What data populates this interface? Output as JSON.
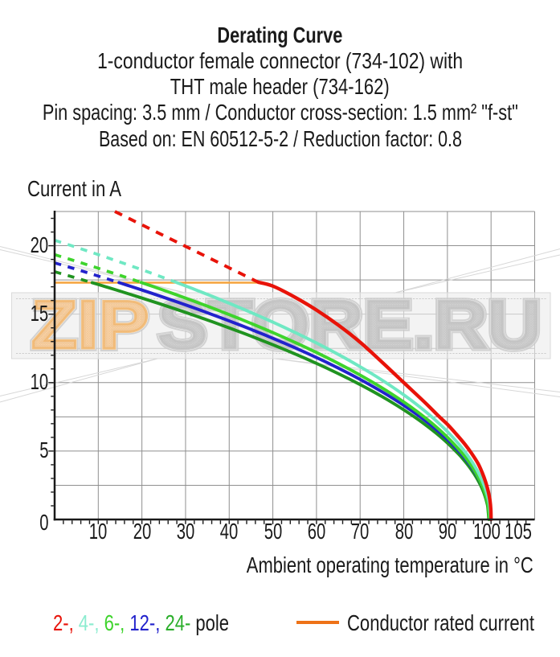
{
  "titles": {
    "line1": "Derating Curve",
    "line2": "1-conductor female connector (734-102) with",
    "line3": "THT male header (734-162)",
    "line4": "Pin spacing: 3.5 mm / Conductor cross-section: 1.5 mm² \"f-st\"",
    "line5": "Based on: EN 60512-5-2 / Reduction factor: 0.8"
  },
  "y_axis": {
    "label": "Current in A",
    "ticks": [
      0,
      5,
      10,
      15,
      20
    ],
    "minor_step": 1,
    "range": [
      0,
      22.5
    ]
  },
  "x_axis": {
    "label": "Ambient operating temperature in °C",
    "ticks": [
      10,
      20,
      30,
      40,
      50,
      60,
      70,
      80,
      90,
      100,
      105
    ],
    "minor_step": 2,
    "range": [
      0,
      110
    ]
  },
  "legend": {
    "pole_items": [
      {
        "label": "2-,",
        "color": "#E81309"
      },
      {
        "label": "4-,",
        "color": "#8CECD0"
      },
      {
        "label": "6-,",
        "color": "#3ED42C"
      },
      {
        "label": "12-,",
        "color": "#2222CC"
      },
      {
        "label": "24-",
        "color": "#2AAE2A"
      }
    ],
    "pole_suffix": "pole",
    "rated_label": "Conductor rated current",
    "rated_color": "#EE7217"
  },
  "watermark": {
    "part1": "ZIP",
    "part2": "STORE.RU",
    "part1_color": "#F6C791",
    "part2_color": "#C6C6C6"
  },
  "chart_data": {
    "type": "line",
    "title": "Derating Curve",
    "xlabel": "Ambient operating temperature in °C",
    "ylabel": "Current in A",
    "xlim": [
      0,
      110
    ],
    "ylim": [
      0,
      22.5
    ],
    "x_gridline_step": 10,
    "y_gridline_step": 2.5,
    "grid": true,
    "rated_line": {
      "y": 17.3,
      "x_start": 0,
      "x_end": 46.7,
      "color": "#F5A43C"
    },
    "series": [
      {
        "name": "2-pole",
        "color": "#E81309",
        "dashed_points": [
          [
            13.8,
            22.5
          ],
          [
            46.7,
            17.33
          ]
        ],
        "solid_points": [
          [
            46.7,
            17.33
          ],
          [
            50,
            17.05
          ],
          [
            55,
            16.25
          ],
          [
            60,
            15.3
          ],
          [
            65,
            14.2
          ],
          [
            70,
            12.95
          ],
          [
            75,
            11.5
          ],
          [
            80,
            10.0
          ],
          [
            85,
            8.5
          ],
          [
            88,
            7.55
          ],
          [
            90,
            6.95
          ],
          [
            92,
            6.25
          ],
          [
            94,
            5.5
          ],
          [
            95.5,
            4.85
          ],
          [
            97,
            4.1
          ],
          [
            98,
            3.4
          ],
          [
            98.8,
            2.7
          ],
          [
            99.4,
            2.0
          ],
          [
            99.75,
            1.4
          ],
          [
            99.95,
            0.7
          ],
          [
            100.0,
            0
          ]
        ]
      },
      {
        "name": "4-pole",
        "color": "#6FE8C3",
        "dashed_points": [
          [
            0.0,
            20.4
          ],
          [
            4.0,
            19.987
          ],
          [
            8.0,
            19.566
          ],
          [
            12.0,
            19.136
          ],
          [
            16.0,
            18.695
          ],
          [
            20.0,
            18.244
          ],
          [
            24.0,
            17.781
          ],
          [
            28.0,
            17.307
          ],
          [
            28.05,
            17.3
          ]
        ],
        "solid_points": [
          [
            28.05,
            17.3
          ],
          [
            30.0,
            17.064
          ],
          [
            32.5,
            16.756
          ],
          [
            35.0,
            16.443
          ],
          [
            37.5,
            16.123
          ],
          [
            40.0,
            15.796
          ],
          [
            42.5,
            15.463
          ],
          [
            45.0,
            15.123
          ],
          [
            47.5,
            14.775
          ],
          [
            50.0,
            14.418
          ],
          [
            52.5,
            14.052
          ],
          [
            55.0,
            13.676
          ],
          [
            57.5,
            13.29
          ],
          [
            60.0,
            12.892
          ],
          [
            62.5,
            12.482
          ],
          [
            65.0,
            12.058
          ],
          [
            67.5,
            11.618
          ],
          [
            70.0,
            11.16
          ],
          [
            72.5,
            10.684
          ],
          [
            75.0,
            10.185
          ],
          [
            77.5,
            9.66
          ],
          [
            80.0,
            9.105
          ],
          [
            82.5,
            8.514
          ],
          [
            85.0,
            7.878
          ],
          [
            87.5,
            7.187
          ],
          [
            90.0,
            6.422
          ],
          [
            92.5,
            5.552
          ],
          [
            93.9,
            4.999
          ],
          [
            94.9,
            4.564
          ],
          [
            95.9,
            4.082
          ],
          [
            96.9,
            3.535
          ],
          [
            97.9,
            2.886
          ],
          [
            98.4,
            2.5
          ],
          [
            98.65,
            2.282
          ],
          [
            98.9,
            2.041
          ],
          [
            99.15,
            1.768
          ],
          [
            99.4,
            1.443
          ],
          [
            99.65,
            1.021
          ],
          [
            99.9,
            0.0
          ]
        ]
      },
      {
        "name": "6-pole",
        "color": "#3ED42C",
        "dashed_points": [
          [
            0.0,
            19.35
          ],
          [
            4.0,
            18.957
          ],
          [
            8.0,
            18.557
          ],
          [
            12.0,
            18.147
          ],
          [
            16.0,
            17.728
          ],
          [
            19.99,
            17.3
          ]
        ],
        "solid_points": [
          [
            19.99,
            17.3
          ],
          [
            20.0,
            17.298
          ],
          [
            22.5,
            17.025
          ],
          [
            25.0,
            16.746
          ],
          [
            27.5,
            16.463
          ],
          [
            30.0,
            16.175
          ],
          [
            32.5,
            15.882
          ],
          [
            35.0,
            15.584
          ],
          [
            37.5,
            15.279
          ],
          [
            40.0,
            14.968
          ],
          [
            42.5,
            14.651
          ],
          [
            45.0,
            14.327
          ],
          [
            47.5,
            13.995
          ],
          [
            50.0,
            13.655
          ],
          [
            52.5,
            13.306
          ],
          [
            55.0,
            12.948
          ],
          [
            57.5,
            12.58
          ],
          [
            60.0,
            12.201
          ],
          [
            62.5,
            11.81
          ],
          [
            65.0,
            11.405
          ],
          [
            67.5,
            10.985
          ],
          [
            70.0,
            10.549
          ],
          [
            72.5,
            10.093
          ],
          [
            75.0,
            9.617
          ],
          [
            77.5,
            9.115
          ],
          [
            80.0,
            8.584
          ],
          [
            82.5,
            8.018
          ],
          [
            85.0,
            7.408
          ],
          [
            87.5,
            6.744
          ],
          [
            90.0,
            6.007
          ],
          [
            92.5,
            5.166
          ],
          [
            93.6,
            4.749
          ],
          [
            94.6,
            4.335
          ],
          [
            95.6,
            3.878
          ],
          [
            96.6,
            3.358
          ],
          [
            97.6,
            2.742
          ],
          [
            98.1,
            2.375
          ],
          [
            98.35,
            2.168
          ],
          [
            98.6,
            1.939
          ],
          [
            98.85,
            1.679
          ],
          [
            99.1,
            1.371
          ],
          [
            99.35,
            0.969
          ],
          [
            99.6,
            0.0
          ]
        ]
      },
      {
        "name": "12-pole",
        "color": "#2222CC",
        "dashed_points": [
          [
            0.0,
            18.75
          ],
          [
            4.0,
            18.37
          ],
          [
            8.0,
            17.982
          ],
          [
            12.0,
            17.585
          ],
          [
            14.82,
            17.3
          ]
        ],
        "solid_points": [
          [
            14.82,
            17.3
          ],
          [
            15.0,
            17.282
          ],
          [
            17.5,
            17.025
          ],
          [
            20.0,
            16.764
          ],
          [
            22.5,
            16.499
          ],
          [
            25.0,
            16.23
          ],
          [
            27.5,
            15.956
          ],
          [
            30.0,
            15.677
          ],
          [
            32.5,
            15.394
          ],
          [
            35.0,
            15.104
          ],
          [
            37.5,
            14.81
          ],
          [
            40.0,
            14.509
          ],
          [
            42.5,
            14.202
          ],
          [
            45.0,
            13.888
          ],
          [
            47.5,
            13.567
          ],
          [
            50.0,
            13.238
          ],
          [
            52.5,
            12.901
          ],
          [
            55.0,
            12.555
          ],
          [
            57.5,
            12.199
          ],
          [
            60.0,
            11.832
          ],
          [
            62.5,
            11.453
          ],
          [
            65.0,
            11.062
          ],
          [
            67.5,
            10.656
          ],
          [
            70.0,
            10.234
          ],
          [
            72.5,
            9.794
          ],
          [
            75.0,
            9.333
          ],
          [
            77.5,
            8.848
          ],
          [
            80.0,
            8.335
          ],
          [
            82.5,
            7.788
          ],
          [
            85.0,
            7.2
          ],
          [
            87.5,
            6.559
          ],
          [
            90.0,
            5.848
          ],
          [
            92.5,
            5.039
          ],
          [
            93.7,
            4.6
          ],
          [
            94.7,
            4.199
          ],
          [
            95.7,
            3.756
          ],
          [
            96.7,
            3.252
          ],
          [
            97.7,
            2.656
          ],
          [
            98.2,
            2.3
          ],
          [
            98.45,
            2.099
          ],
          [
            98.7,
            1.878
          ],
          [
            98.95,
            1.626
          ],
          [
            99.2,
            1.328
          ],
          [
            99.45,
            0.939
          ],
          [
            99.7,
            0.0
          ]
        ]
      },
      {
        "name": "24-pole",
        "color": "#209320",
        "dashed_points": [
          [
            0.0,
            18.1
          ],
          [
            4.0,
            17.732
          ],
          [
            8.0,
            17.357
          ],
          [
            8.6,
            17.3
          ]
        ],
        "solid_points": [
          [
            8.6,
            17.3
          ],
          [
            10.0,
            17.166
          ],
          [
            12.5,
            16.925
          ],
          [
            15.0,
            16.68
          ],
          [
            17.5,
            16.431
          ],
          [
            20.0,
            16.179
          ],
          [
            22.5,
            15.923
          ],
          [
            25.0,
            15.662
          ],
          [
            27.5,
            15.397
          ],
          [
            30.0,
            15.127
          ],
          [
            32.5,
            14.853
          ],
          [
            35.0,
            14.573
          ],
          [
            37.5,
            14.288
          ],
          [
            40.0,
            13.997
          ],
          [
            42.5,
            13.699
          ],
          [
            45.0,
            13.396
          ],
          [
            47.5,
            13.085
          ],
          [
            50.0,
            12.766
          ],
          [
            52.5,
            12.44
          ],
          [
            55.0,
            12.105
          ],
          [
            57.5,
            11.76
          ],
          [
            60.0,
            11.404
          ],
          [
            62.5,
            11.037
          ],
          [
            65.0,
            10.658
          ],
          [
            67.5,
            10.265
          ],
          [
            70.0,
            9.855
          ],
          [
            72.5,
            9.429
          ],
          [
            75.0,
            8.982
          ],
          [
            77.5,
            8.511
          ],
          [
            80.0,
            8.013
          ],
          [
            82.5,
            7.482
          ],
          [
            85.0,
            6.91
          ],
          [
            87.5,
            6.286
          ],
          [
            90.0,
            5.593
          ],
          [
            92.5,
            4.801
          ],
          [
            93.5,
            4.445
          ],
          [
            94.5,
            4.057
          ],
          [
            95.5,
            3.629
          ],
          [
            96.5,
            3.143
          ],
          [
            97.5,
            2.566
          ],
          [
            98.0,
            2.222
          ],
          [
            98.25,
            2.029
          ],
          [
            98.5,
            1.815
          ],
          [
            98.75,
            1.571
          ],
          [
            99.0,
            1.283
          ],
          [
            99.25,
            0.907
          ],
          [
            99.5,
            0.0
          ]
        ]
      }
    ]
  }
}
